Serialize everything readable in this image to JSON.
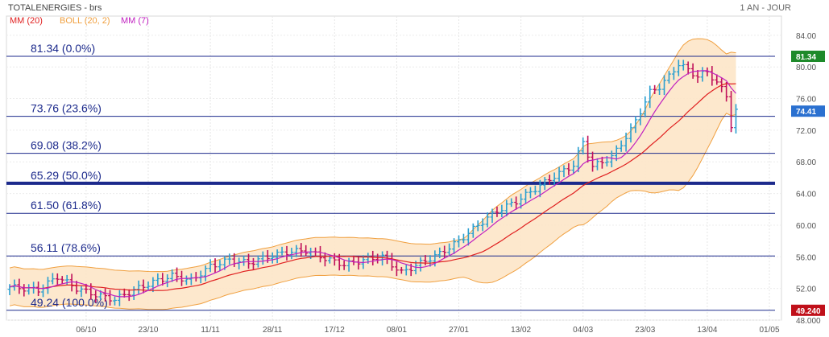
{
  "header": {
    "title": "TOTALENERGIES - brs",
    "period": "1 AN - JOUR"
  },
  "legend": [
    {
      "label": "MM (20)",
      "color": "#e02020"
    },
    {
      "label": "BOLL (20, 2)",
      "color": "#f0a040"
    },
    {
      "label": "MM (7)",
      "color": "#c020c0"
    }
  ],
  "colors": {
    "up": "#2a9fd0",
    "down": "#c0105a",
    "fib_line": "#1c2a8c",
    "boll_fill": "#fde6c8",
    "boll_line": "#f0a040",
    "ma20": "#e02020",
    "ma7": "#c020c0",
    "badge_green": "#1e8a2a",
    "badge_blue": "#2a70d0",
    "badge_red": "#c0101a"
  },
  "chart_data": {
    "type": "candlestick",
    "title": "TOTALENERGIES - brs",
    "ylim": [
      48,
      85
    ],
    "y_ticks": [
      "84.00",
      "80.00",
      "76.00",
      "72.00",
      "68.00",
      "64.00",
      "60.00",
      "56.00",
      "52.00",
      "48.000"
    ],
    "y_tick_values": [
      84,
      80,
      76,
      72,
      68,
      64,
      60,
      56,
      52,
      48
    ],
    "x_ticks": [
      "06/10",
      "23/10",
      "11/11",
      "28/11",
      "17/12",
      "08/01",
      "27/01",
      "13/02",
      "04/03",
      "23/03",
      "13/04",
      "01/05"
    ],
    "x_tick_index": [
      16,
      29,
      42,
      55,
      68,
      81,
      94,
      107,
      120,
      133,
      146,
      159
    ],
    "n_bars": 160,
    "fib_levels": [
      {
        "value": 81.34,
        "label": "81.34  (0.0%)"
      },
      {
        "value": 73.76,
        "label": "73.76  (23.6%)"
      },
      {
        "value": 69.08,
        "label": "69.08  (38.2%)"
      },
      {
        "value": 65.29,
        "label": "65.29  (50.0%)",
        "bold": true
      },
      {
        "value": 61.5,
        "label": "61.50  (61.8%)"
      },
      {
        "value": 56.11,
        "label": "56.11  (78.6%)"
      },
      {
        "value": 49.24,
        "label": "49.24  (100.0%)"
      }
    ],
    "badges": [
      {
        "value": 81.34,
        "text": "81.34",
        "color": "green"
      },
      {
        "value": 74.41,
        "text": "74.41",
        "color": "blue"
      },
      {
        "value": 49.24,
        "text": "49.240",
        "color": "red"
      }
    ],
    "close_anchors": [
      [
        0,
        52.2
      ],
      [
        6,
        51.8
      ],
      [
        10,
        53.5
      ],
      [
        14,
        52.0
      ],
      [
        18,
        51.2
      ],
      [
        22,
        50.6
      ],
      [
        26,
        51.8
      ],
      [
        30,
        52.8
      ],
      [
        34,
        53.6
      ],
      [
        38,
        53.0
      ],
      [
        42,
        54.8
      ],
      [
        46,
        55.6
      ],
      [
        50,
        55.2
      ],
      [
        54,
        56.0
      ],
      [
        58,
        56.6
      ],
      [
        62,
        56.8
      ],
      [
        66,
        55.8
      ],
      [
        70,
        55.0
      ],
      [
        74,
        55.6
      ],
      [
        78,
        56.0
      ],
      [
        82,
        54.0
      ],
      [
        86,
        55.2
      ],
      [
        90,
        56.4
      ],
      [
        94,
        58.0
      ],
      [
        98,
        60.0
      ],
      [
        102,
        61.8
      ],
      [
        106,
        63.0
      ],
      [
        110,
        64.6
      ],
      [
        114,
        66.2
      ],
      [
        118,
        67.6
      ],
      [
        120,
        70.5
      ],
      [
        122,
        67.4
      ],
      [
        126,
        68.6
      ],
      [
        130,
        72.0
      ],
      [
        134,
        76.8
      ],
      [
        136,
        77.5
      ],
      [
        138,
        78.8
      ],
      [
        140,
        80.4
      ],
      [
        142,
        79.6
      ],
      [
        144,
        78.8
      ],
      [
        146,
        79.4
      ],
      [
        148,
        78.0
      ],
      [
        150,
        76.4
      ],
      [
        151,
        72.6
      ],
      [
        152,
        74.4
      ]
    ]
  }
}
